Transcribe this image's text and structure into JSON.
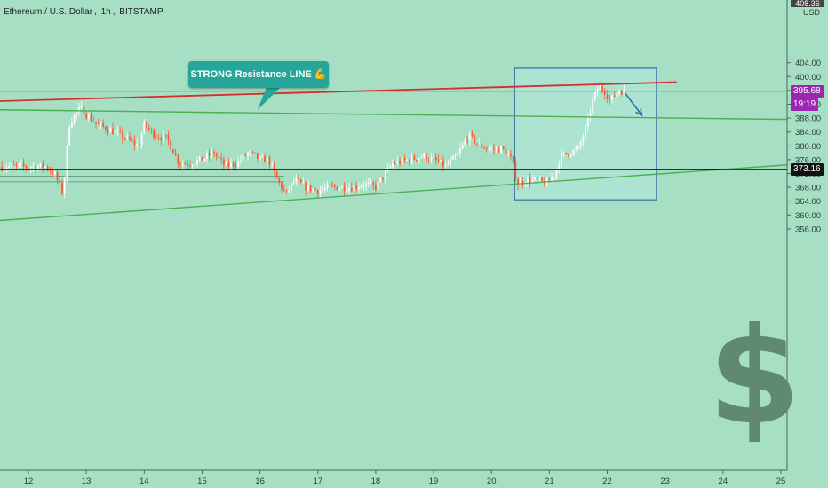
{
  "header": {
    "symbol": "Ethereum / U.S. Dollar",
    "interval": "1h",
    "exchange": "BITSTAMP"
  },
  "annotation": {
    "callout_text": "STRONG Resistance LINE 💪"
  },
  "axis": {
    "currency": "USD",
    "top_value": "408.36"
  },
  "price_tags": {
    "last_price": "395.68",
    "countdown": "19:19",
    "level": "373.16"
  },
  "colors": {
    "background": "#a6dfc4",
    "up_candle": "#ffffff",
    "down_candle": "#ff5a2c",
    "resistance_line": "#d32f2f",
    "trend_line": "#4caf50",
    "level_line": "#000000",
    "box_fill": "#b2e8dc",
    "box_border": "#1e5a9e",
    "arrow": "#1e6bb0",
    "callout_bg": "#26a69a",
    "last_price_tag": "#9c27b0",
    "dollar_sign": "#5f8a71"
  },
  "chart_data": {
    "type": "candlestick",
    "title": "Ethereum / U.S. Dollar, 1h, BITSTAMP",
    "xlabel": "",
    "ylabel": "USD",
    "x_ticks": [
      "12",
      "13",
      "14",
      "15",
      "16",
      "17",
      "18",
      "19",
      "20",
      "21",
      "22",
      "23",
      "24",
      "25"
    ],
    "y_ticks": [
      356,
      360,
      364,
      368,
      372,
      376,
      380,
      384,
      388,
      392,
      396,
      400,
      404
    ],
    "ylim": [
      354.6,
      408.36
    ],
    "xlim": [
      "12",
      "25"
    ],
    "grid": false,
    "legend": "none",
    "close_path": [
      [
        "11.5",
        374
      ],
      [
        "12.3",
        374
      ],
      [
        "12.45",
        372
      ],
      [
        "12.55",
        368
      ],
      [
        "12.6",
        366
      ],
      [
        "12.7",
        386
      ],
      [
        "12.8",
        389
      ],
      [
        "12.93",
        391
      ],
      [
        "13.0",
        389
      ],
      [
        "13.2",
        386
      ],
      [
        "13.5",
        384
      ],
      [
        "13.7",
        382
      ],
      [
        "13.9",
        380
      ],
      [
        "14.0",
        386
      ],
      [
        "14.2",
        383
      ],
      [
        "14.4",
        382
      ],
      [
        "14.6",
        375
      ],
      [
        "14.8",
        375
      ],
      [
        "15.0",
        376
      ],
      [
        "15.2",
        378
      ],
      [
        "15.4",
        374
      ],
      [
        "15.6",
        375
      ],
      [
        "15.8",
        378
      ],
      [
        "16.0",
        376
      ],
      [
        "16.15",
        376
      ],
      [
        "16.3",
        370
      ],
      [
        "16.45",
        366
      ],
      [
        "16.6",
        370
      ],
      [
        "16.8",
        368
      ],
      [
        "17.0",
        367
      ],
      [
        "17.2",
        368
      ],
      [
        "17.6",
        368
      ],
      [
        "17.8",
        369
      ],
      [
        "18.0",
        368
      ],
      [
        "18.3",
        375
      ],
      [
        "18.6",
        376
      ],
      [
        "18.8",
        377
      ],
      [
        "19.0",
        376
      ],
      [
        "19.2",
        374
      ],
      [
        "19.4",
        377
      ],
      [
        "19.6",
        383
      ],
      [
        "19.8",
        380
      ],
      [
        "20.0",
        379
      ],
      [
        "20.2",
        379
      ],
      [
        "20.35",
        376
      ],
      [
        "20.45",
        369
      ],
      [
        "20.6",
        370
      ],
      [
        "20.8",
        370
      ],
      [
        "20.95",
        369
      ],
      [
        "21.1",
        372
      ],
      [
        "21.2",
        377
      ],
      [
        "21.35",
        378
      ],
      [
        "21.5",
        379
      ],
      [
        "21.65",
        386
      ],
      [
        "21.75",
        393
      ],
      [
        "21.85",
        397
      ],
      [
        "21.95",
        396
      ],
      [
        "22.05",
        393
      ],
      [
        "22.2",
        396
      ],
      [
        "22.3",
        395.68
      ]
    ],
    "drawings": {
      "resistance_line": {
        "from": [
          "11.5",
          392.9
        ],
        "to": [
          "23.2",
          398.4
        ]
      },
      "upper_trend_line": {
        "from": [
          "11.5",
          390.4
        ],
        "to": [
          "25.2",
          387.6
        ]
      },
      "lower_trend_line": {
        "from": [
          "11.5",
          358.4
        ],
        "to": [
          "25.2",
          374.6
        ]
      },
      "horizontal_level": 373.16,
      "highlight_box": {
        "from": [
          "20.4",
          402.4
        ],
        "to": [
          "22.85",
          364.4
        ]
      },
      "projection_arrow": {
        "from": [
          "22.3",
          395.4
        ],
        "to": [
          "22.6",
          388.8
        ]
      }
    }
  }
}
